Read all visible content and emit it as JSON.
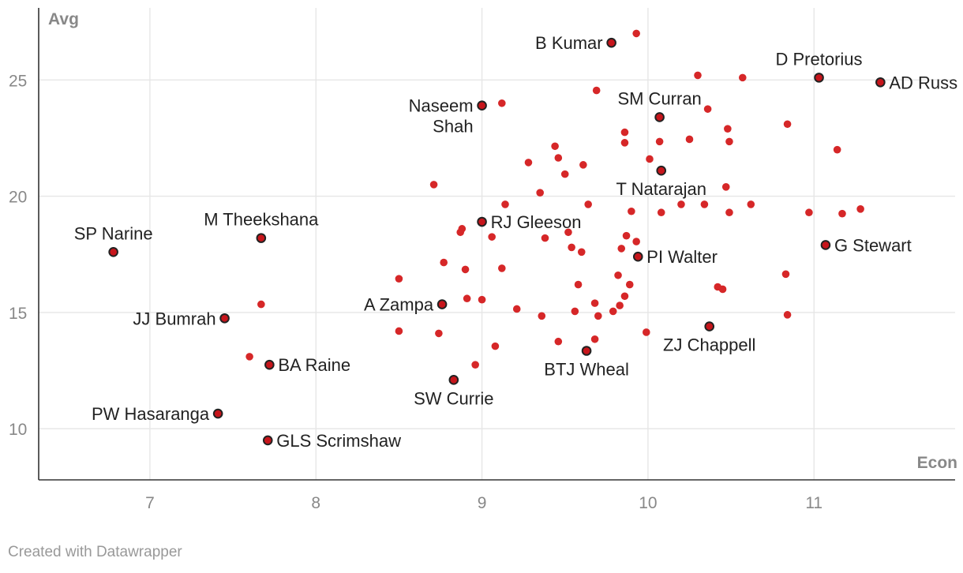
{
  "chart_data": {
    "type": "scatter",
    "xlabel": "Econ",
    "ylabel": "Avg",
    "xlim": [
      6.33,
      11.85
    ],
    "ylim": [
      7.8,
      28.1
    ],
    "xticks": [
      "7",
      "8",
      "9",
      "10",
      "11"
    ],
    "yticks": [
      "10",
      "15",
      "20",
      "25"
    ],
    "grid": true,
    "colors": {
      "point": "#d62728",
      "highlight_fill": "#c7151b",
      "highlight_stroke": "#222222"
    },
    "highlighted": [
      {
        "name": "B Kumar",
        "x": 9.78,
        "y": 26.6,
        "lines": [
          "B Kumar"
        ],
        "anchor": "left"
      },
      {
        "name": "D Pretorius",
        "x": 11.03,
        "y": 25.1,
        "lines": [
          "D Pretorius"
        ],
        "anchor": "above"
      },
      {
        "name": "AD Russell",
        "x": 11.4,
        "y": 24.9,
        "lines": [
          "AD Russ"
        ],
        "anchor": "right"
      },
      {
        "name": "Naseem Shah",
        "x": 9.0,
        "y": 23.9,
        "lines": [
          "Naseem",
          "Shah"
        ],
        "anchor": "left"
      },
      {
        "name": "SM Curran",
        "x": 10.07,
        "y": 23.4,
        "lines": [
          "SM Curran"
        ],
        "anchor": "above"
      },
      {
        "name": "T Natarajan",
        "x": 10.08,
        "y": 21.1,
        "lines": [
          "T Natarajan"
        ],
        "anchor": "below"
      },
      {
        "name": "SP Narine",
        "x": 6.78,
        "y": 17.6,
        "lines": [
          "SP Narine"
        ],
        "anchor": "above"
      },
      {
        "name": "M Theekshana",
        "x": 7.67,
        "y": 18.2,
        "lines": [
          "M Theekshana"
        ],
        "anchor": "above"
      },
      {
        "name": "RJ Gleeson",
        "x": 9.0,
        "y": 18.9,
        "lines": [
          "RJ Gleeson"
        ],
        "anchor": "right"
      },
      {
        "name": "G Stewart",
        "x": 11.07,
        "y": 17.9,
        "lines": [
          "G Stewart"
        ],
        "anchor": "right"
      },
      {
        "name": "PI Walter",
        "x": 9.94,
        "y": 17.4,
        "lines": [
          "PI Walter"
        ],
        "anchor": "right"
      },
      {
        "name": "A Zampa",
        "x": 8.76,
        "y": 15.35,
        "lines": [
          "A Zampa"
        ],
        "anchor": "left"
      },
      {
        "name": "JJ Bumrah",
        "x": 7.45,
        "y": 14.75,
        "lines": [
          "JJ Bumrah"
        ],
        "anchor": "left"
      },
      {
        "name": "ZJ Chappell",
        "x": 10.37,
        "y": 14.4,
        "lines": [
          "ZJ Chappell"
        ],
        "anchor": "below"
      },
      {
        "name": "BTJ Wheal",
        "x": 9.63,
        "y": 13.35,
        "lines": [
          "BTJ Wheal"
        ],
        "anchor": "below"
      },
      {
        "name": "BA Raine",
        "x": 7.72,
        "y": 12.75,
        "lines": [
          "BA Raine"
        ],
        "anchor": "right"
      },
      {
        "name": "SW Currie",
        "x": 8.83,
        "y": 12.1,
        "lines": [
          "SW Currie"
        ],
        "anchor": "below"
      },
      {
        "name": "PW Hasaranga",
        "x": 7.41,
        "y": 10.65,
        "lines": [
          "PW Hasaranga"
        ],
        "anchor": "left"
      },
      {
        "name": "GLS Scrimshaw",
        "x": 7.71,
        "y": 9.5,
        "lines": [
          "GLS Scrimshaw"
        ],
        "anchor": "right"
      }
    ],
    "points": [
      [
        9.93,
        27.0
      ],
      [
        9.12,
        24.0
      ],
      [
        9.69,
        24.55
      ],
      [
        10.3,
        25.2
      ],
      [
        10.57,
        25.1
      ],
      [
        10.36,
        23.75
      ],
      [
        10.84,
        23.1
      ],
      [
        10.48,
        22.9
      ],
      [
        10.49,
        22.35
      ],
      [
        11.14,
        22.0
      ],
      [
        9.86,
        22.75
      ],
      [
        9.86,
        22.3
      ],
      [
        10.07,
        22.35
      ],
      [
        10.25,
        22.45
      ],
      [
        10.01,
        21.6
      ],
      [
        9.44,
        22.15
      ],
      [
        9.46,
        21.65
      ],
      [
        9.28,
        21.45
      ],
      [
        9.61,
        21.35
      ],
      [
        9.5,
        20.95
      ],
      [
        8.71,
        20.5
      ],
      [
        9.35,
        20.15
      ],
      [
        10.47,
        20.4
      ],
      [
        9.14,
        19.65
      ],
      [
        9.64,
        19.65
      ],
      [
        10.2,
        19.65
      ],
      [
        10.34,
        19.65
      ],
      [
        10.62,
        19.65
      ],
      [
        9.9,
        19.35
      ],
      [
        10.08,
        19.3
      ],
      [
        10.49,
        19.3
      ],
      [
        10.97,
        19.3
      ],
      [
        11.17,
        19.25
      ],
      [
        11.28,
        19.45
      ],
      [
        8.88,
        18.6
      ],
      [
        8.87,
        18.45
      ],
      [
        9.06,
        18.25
      ],
      [
        9.38,
        18.2
      ],
      [
        9.52,
        18.45
      ],
      [
        9.87,
        18.3
      ],
      [
        9.54,
        17.8
      ],
      [
        9.6,
        17.6
      ],
      [
        9.84,
        17.75
      ],
      [
        9.93,
        18.05
      ],
      [
        8.77,
        17.15
      ],
      [
        8.9,
        16.85
      ],
      [
        9.12,
        16.9
      ],
      [
        8.5,
        16.45
      ],
      [
        9.82,
        16.6
      ],
      [
        9.58,
        16.2
      ],
      [
        9.89,
        16.2
      ],
      [
        10.83,
        16.65
      ],
      [
        10.42,
        16.1
      ],
      [
        10.45,
        16.0
      ],
      [
        7.67,
        15.35
      ],
      [
        8.91,
        15.6
      ],
      [
        9.0,
        15.55
      ],
      [
        9.68,
        15.4
      ],
      [
        9.86,
        15.7
      ],
      [
        9.83,
        15.3
      ],
      [
        9.21,
        15.15
      ],
      [
        9.79,
        15.05
      ],
      [
        9.56,
        15.05
      ],
      [
        9.36,
        14.85
      ],
      [
        9.7,
        14.85
      ],
      [
        10.84,
        14.9
      ],
      [
        8.5,
        14.2
      ],
      [
        8.74,
        14.1
      ],
      [
        9.99,
        14.15
      ],
      [
        9.08,
        13.55
      ],
      [
        9.46,
        13.75
      ],
      [
        9.68,
        13.85
      ],
      [
        7.6,
        13.1
      ],
      [
        8.96,
        12.75
      ]
    ]
  },
  "credit": "Created with Datawrapper"
}
